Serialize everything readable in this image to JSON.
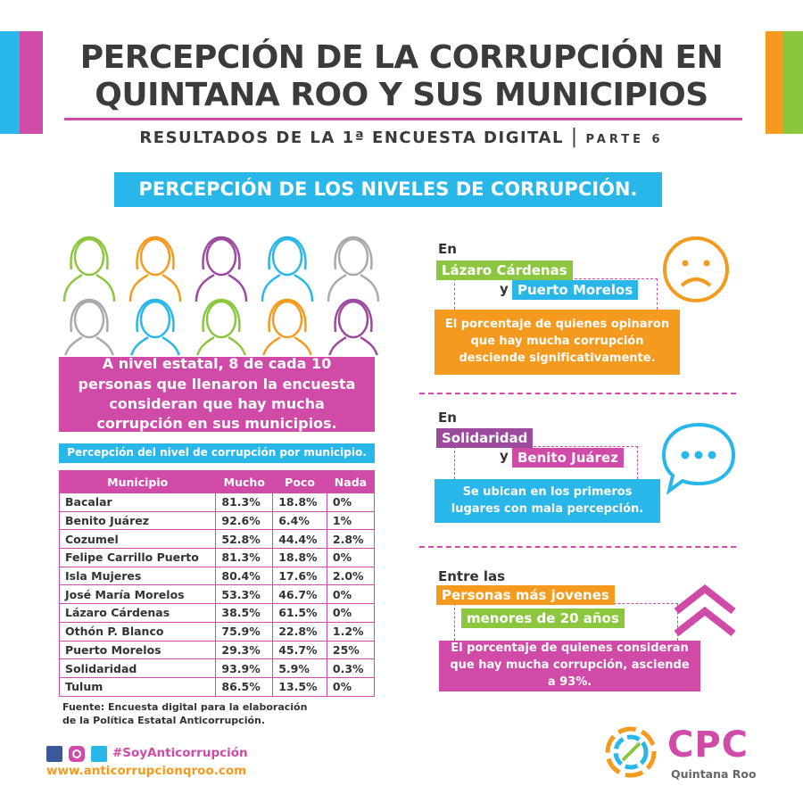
{
  "header": {
    "title_line1": "PERCEPCIÓN DE LA CORRUPCIÓN EN",
    "title_line2": "QUINTANA ROO Y SUS MUNICIPIOS",
    "subtitle": "RESULTADOS DE LA 1ª ENCUESTA DIGITAL",
    "separator": "|",
    "part": "PARTE 6"
  },
  "section_title": "PERCEPCIÓN DE LOS NIVELES DE CORRUPCIÓN.",
  "statement": {
    "before": "A nivel estatal, 8 de cada 10 personas que llenaron la encuesta consideran que hay ",
    "emphasis": "mucha",
    "after": " corrupción en sus municipios."
  },
  "table": {
    "caption": "Percepción del nivel de corrupción por municipio.",
    "header": [
      "Municipio",
      "Mucho",
      "Poco",
      "Nada"
    ],
    "rows": [
      [
        "Bacalar",
        "81.3%",
        "18.8%",
        "0%"
      ],
      [
        "Benito Juárez",
        "92.6%",
        "6.4%",
        "1%"
      ],
      [
        "Cozumel",
        "52.8%",
        "44.4%",
        "2.8%"
      ],
      [
        "Felipe Carrillo Puerto",
        "81.3%",
        "18.8%",
        "0%"
      ],
      [
        "Isla Mujeres",
        "80.4%",
        "17.6%",
        "2.0%"
      ],
      [
        "José María Morelos",
        "53.3%",
        "46.7%",
        "0%"
      ],
      [
        "Lázaro Cárdenas",
        "38.5%",
        "61.5%",
        "0%"
      ],
      [
        "Othón P. Blanco",
        "75.9%",
        "22.8%",
        "1.2%"
      ],
      [
        "Puerto Morelos",
        "29.3%",
        "45.7%",
        "25%"
      ],
      [
        "Solidaridad",
        "93.9%",
        "5.9%",
        "0.3%"
      ],
      [
        "Tulum",
        "86.5%",
        "13.5%",
        "0%"
      ]
    ]
  },
  "source": "Fuente: Encuesta digital para la elaboración de la Política Estatal Anticorrupción.",
  "findings": [
    {
      "intro": "En",
      "first": "Lázaro Cárdenas",
      "connector": "y",
      "second": "Puerto Morelos",
      "text": "El porcentaje de quienes opinaron que hay mucha corrupción desciende significativamente."
    },
    {
      "intro": "En",
      "first": "Solidaridad",
      "connector": "y",
      "second": "Benito Juárez",
      "text": "Se ubican en los primeros lugares con mala percepción."
    },
    {
      "intro": "Entre las",
      "first": "Personas más jovenes",
      "second": "menores de 20 años",
      "text": "El porcentaje de quienes consideran que hay mucha corrupción, asciende a 93%."
    }
  ],
  "footer": {
    "hashtag": "#SoyAnticorrupción",
    "url": "www.anticorrupcionqroo.com"
  },
  "logo": {
    "name": "CPC",
    "place": "Quintana Roo"
  }
}
